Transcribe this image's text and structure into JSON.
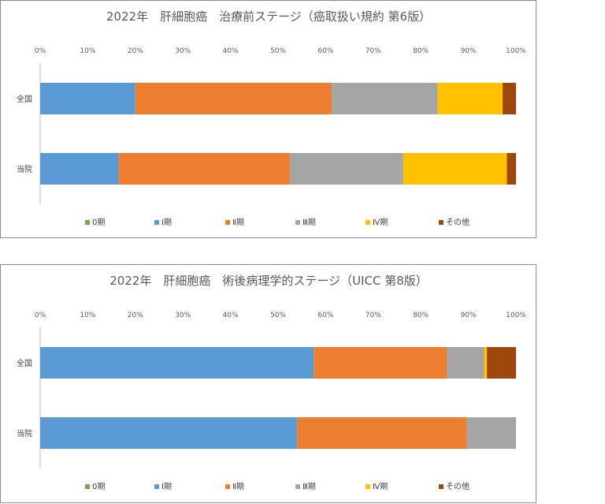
{
  "chart_data": [
    {
      "type": "bar",
      "orientation": "horizontal",
      "stacked": "percent",
      "title": "2022年　肝細胞癌　治療前ステージ（癌取扱い規約 第6版）",
      "categories": [
        "全国",
        "当院"
      ],
      "x_ticks": [
        "0%",
        "10%",
        "20%",
        "30%",
        "40%",
        "50%",
        "60%",
        "70%",
        "80%",
        "90%",
        "100%"
      ],
      "xlim": [
        0,
        100
      ],
      "legend_position": "bottom",
      "grid": false,
      "series": [
        {
          "name": "0期",
          "color": "#70ad47",
          "values": [
            0,
            0
          ]
        },
        {
          "name": "Ⅰ期",
          "color": "#5b9bd5",
          "values": [
            20.0,
            16.5
          ]
        },
        {
          "name": "Ⅱ期",
          "color": "#ed7d31",
          "values": [
            41.3,
            36.0
          ]
        },
        {
          "name": "Ⅲ期",
          "color": "#a5a5a5",
          "values": [
            22.2,
            23.8
          ]
        },
        {
          "name": "Ⅳ期",
          "color": "#ffc000",
          "values": [
            13.7,
            21.8
          ]
        },
        {
          "name": "その他",
          "color": "#9e480e",
          "values": [
            2.8,
            1.9
          ]
        }
      ]
    },
    {
      "type": "bar",
      "orientation": "horizontal",
      "stacked": "percent",
      "title": "2022年　肝細胞癌　術後病理学的ステージ（UICC 第8版）",
      "categories": [
        "全国",
        "当院"
      ],
      "x_ticks": [
        "0%",
        "10%",
        "20%",
        "30%",
        "40%",
        "50%",
        "60%",
        "70%",
        "80%",
        "90%",
        "100%"
      ],
      "xlim": [
        0,
        100
      ],
      "legend_position": "bottom",
      "grid": false,
      "series": [
        {
          "name": "0期",
          "color": "#70ad47",
          "values": [
            0,
            0
          ]
        },
        {
          "name": "Ⅰ期",
          "color": "#5b9bd5",
          "values": [
            57.5,
            54.0
          ]
        },
        {
          "name": "Ⅱ期",
          "color": "#ed7d31",
          "values": [
            28.0,
            35.7
          ]
        },
        {
          "name": "Ⅲ期",
          "color": "#a5a5a5",
          "values": [
            7.8,
            10.3
          ]
        },
        {
          "name": "Ⅳ期",
          "color": "#ffc000",
          "values": [
            0.6,
            0
          ]
        },
        {
          "name": "その他",
          "color": "#9e480e",
          "values": [
            6.1,
            0
          ]
        }
      ]
    }
  ]
}
